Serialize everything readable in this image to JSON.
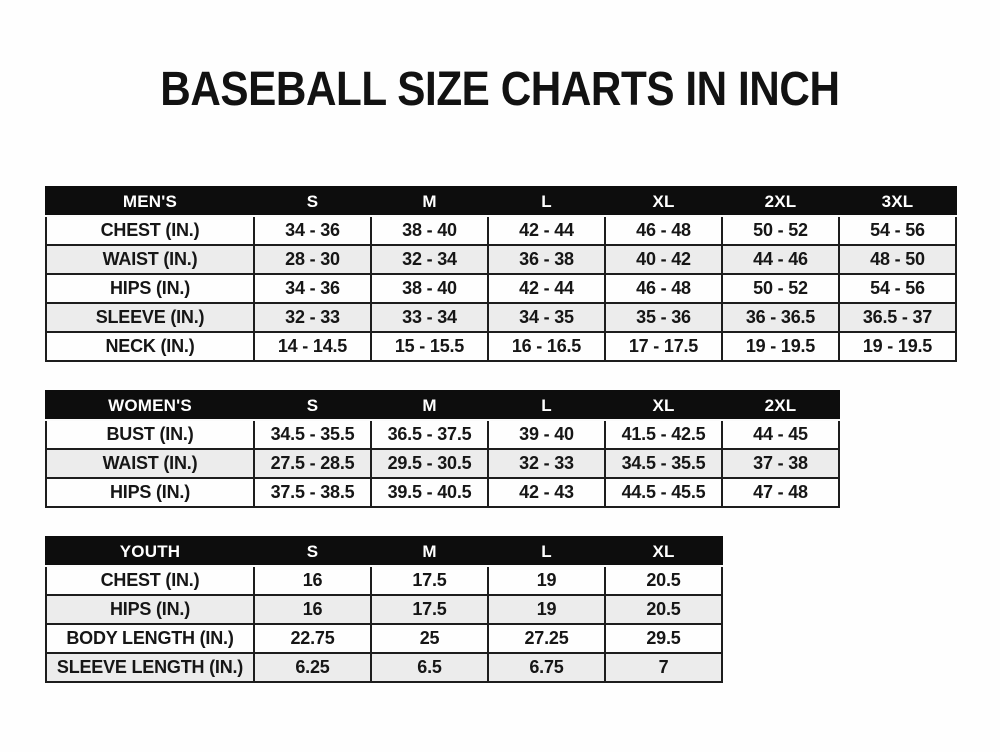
{
  "page": {
    "title": "BASEBALL SIZE CHARTS IN INCH"
  },
  "colors": {
    "header_bg": "#0d0d0d",
    "header_text": "#ffffff",
    "row_bg": "#fefefe",
    "row_alt_bg": "#ececec",
    "border": "#1d1d1d",
    "text": "#161616",
    "page_bg": "#fefefe"
  },
  "tables": [
    {
      "name": "mens",
      "header": [
        "MEN'S",
        "S",
        "M",
        "L",
        "XL",
        "2XL",
        "3XL"
      ],
      "rows": [
        [
          "CHEST (IN.)",
          "34 - 36",
          "38 - 40",
          "42 - 44",
          "46 - 48",
          "50 - 52",
          "54 - 56"
        ],
        [
          "WAIST (IN.)",
          "28 - 30",
          "32 - 34",
          "36 - 38",
          "40 - 42",
          "44 - 46",
          "48 - 50"
        ],
        [
          "HIPS (IN.)",
          "34 - 36",
          "38 - 40",
          "42 - 44",
          "46 - 48",
          "50 - 52",
          "54 - 56"
        ],
        [
          "SLEEVE (IN.)",
          "32 - 33",
          "33 - 34",
          "34 - 35",
          "35 - 36",
          "36 - 36.5",
          "36.5 - 37"
        ],
        [
          "NECK (IN.)",
          "14 - 14.5",
          "15 - 15.5",
          "16 - 16.5",
          "17 - 17.5",
          "19 - 19.5",
          "19 - 19.5"
        ]
      ]
    },
    {
      "name": "womens",
      "header": [
        "WOMEN'S",
        "S",
        "M",
        "L",
        "XL",
        "2XL"
      ],
      "rows": [
        [
          "BUST (IN.)",
          "34.5 - 35.5",
          "36.5 - 37.5",
          "39 - 40",
          "41.5 - 42.5",
          "44 - 45"
        ],
        [
          "WAIST (IN.)",
          "27.5 - 28.5",
          "29.5 - 30.5",
          "32 - 33",
          "34.5 - 35.5",
          "37 - 38"
        ],
        [
          "HIPS (IN.)",
          "37.5 - 38.5",
          "39.5 - 40.5",
          "42 - 43",
          "44.5 - 45.5",
          "47 - 48"
        ]
      ]
    },
    {
      "name": "youth",
      "header": [
        "YOUTH",
        "S",
        "M",
        "L",
        "XL"
      ],
      "rows": [
        [
          "CHEST (IN.)",
          "16",
          "17.5",
          "19",
          "20.5"
        ],
        [
          "HIPS (IN.)",
          "16",
          "17.5",
          "19",
          "20.5"
        ],
        [
          "BODY LENGTH (IN.)",
          "22.75",
          "25",
          "27.25",
          "29.5"
        ],
        [
          "SLEEVE LENGTH (IN.)",
          "6.25",
          "6.5",
          "6.75",
          "7"
        ]
      ]
    }
  ]
}
